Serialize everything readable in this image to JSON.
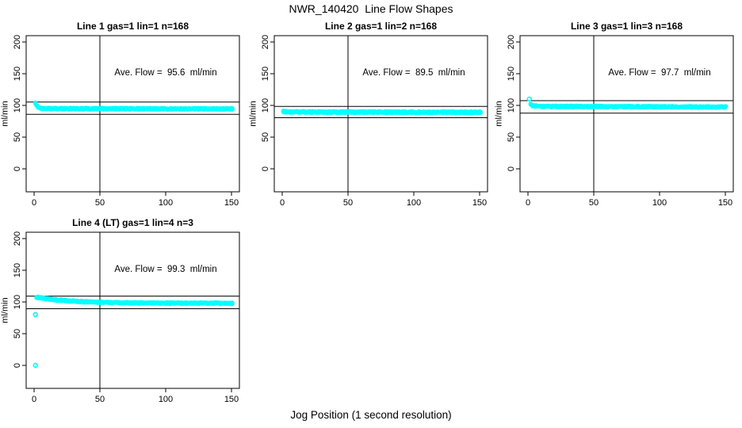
{
  "figure": {
    "title": "NWR_140420  Line Flow Shapes",
    "xlabel": "Jog Position (1 second resolution)"
  },
  "colors": {
    "data_points": "#00FFFF",
    "first_point": "#FFB6C1",
    "axis_lines": "#000000",
    "background": "#FFFFFF"
  },
  "chart_data": {
    "type": "scatter",
    "layout": "4 panels: 3 in top row, 1 bottom-left",
    "shared": {
      "ylabel": "ml/min",
      "xticks": [
        0,
        50,
        100,
        150
      ],
      "yticks": [
        0,
        50,
        100,
        150,
        200
      ],
      "xlim": [
        -6,
        156
      ],
      "ylim": [
        -36,
        210
      ],
      "vline_x": 50,
      "grid": false,
      "point_style": "open circles, cyan"
    },
    "plots": [
      {
        "title": "Line 1 gas=1 lin=1 n=168",
        "annotation": "Ave. Flow =  95.6  ml/min",
        "ave_flow": 95.6,
        "n_jogs": 168,
        "hlines": [
          105.2,
          86.0
        ],
        "series_profile": [
          [
            1,
            103.5
          ],
          [
            2,
            100
          ],
          [
            3,
            97.5
          ],
          [
            4,
            96
          ],
          [
            6,
            95.3
          ],
          [
            10,
            95
          ],
          [
            60,
            94.8
          ],
          [
            151,
            94.6
          ]
        ],
        "band_halfwidth": 1.3,
        "outliers": [],
        "pink_points": []
      },
      {
        "title": "Line 2 gas=1 lin=2 n=168",
        "annotation": "Ave. Flow =  89.5  ml/min",
        "ave_flow": 89.5,
        "n_jogs": 168,
        "hlines": [
          98.5,
          80.6
        ],
        "series_profile": [
          [
            1,
            90.5
          ],
          [
            3,
            89.8
          ],
          [
            30,
            89.5
          ],
          [
            151,
            89.2
          ]
        ],
        "band_halfwidth": 1.5,
        "outliers": [],
        "pink_points": [
          [
            1,
            91
          ]
        ]
      },
      {
        "title": "Line 3 gas=1 lin=3 n=168",
        "annotation": "Ave. Flow =  97.7  ml/min",
        "ave_flow": 97.7,
        "n_jogs": 168,
        "hlines": [
          107.5,
          87.9
        ],
        "series_profile": [
          [
            2,
            102.5
          ],
          [
            3,
            100
          ],
          [
            5,
            99
          ],
          [
            10,
            98.5
          ],
          [
            60,
            98.2
          ],
          [
            151,
            97.4
          ]
        ],
        "band_halfwidth": 1.3,
        "outliers": [
          [
            1,
            110
          ]
        ],
        "pink_points": []
      },
      {
        "title": "Line 4 (LT) gas=1 lin=4 n=3",
        "annotation": "Ave. Flow =  99.3  ml/min",
        "ave_flow": 99.3,
        "n_jogs": 3,
        "hlines": [
          109.2,
          89.4
        ],
        "series_profile": [
          [
            2,
            107.5
          ],
          [
            5,
            106.5
          ],
          [
            10,
            104.8
          ],
          [
            15,
            103.6
          ],
          [
            20,
            102.6
          ],
          [
            25,
            101.8
          ],
          [
            30,
            101.2
          ],
          [
            35,
            100.7
          ],
          [
            40,
            100.3
          ],
          [
            50,
            99.6
          ],
          [
            60,
            99
          ],
          [
            70,
            98.7
          ],
          [
            80,
            98.5
          ],
          [
            90,
            98.4
          ],
          [
            100,
            98.3
          ],
          [
            110,
            98.3
          ],
          [
            120,
            98.3
          ],
          [
            135,
            98.2
          ],
          [
            151,
            97.9
          ]
        ],
        "band_halfwidth": 1.0,
        "outliers": [
          [
            1,
            80
          ],
          [
            1,
            0
          ]
        ],
        "pink_points": [
          [
            1,
            80.5
          ]
        ]
      }
    ]
  }
}
